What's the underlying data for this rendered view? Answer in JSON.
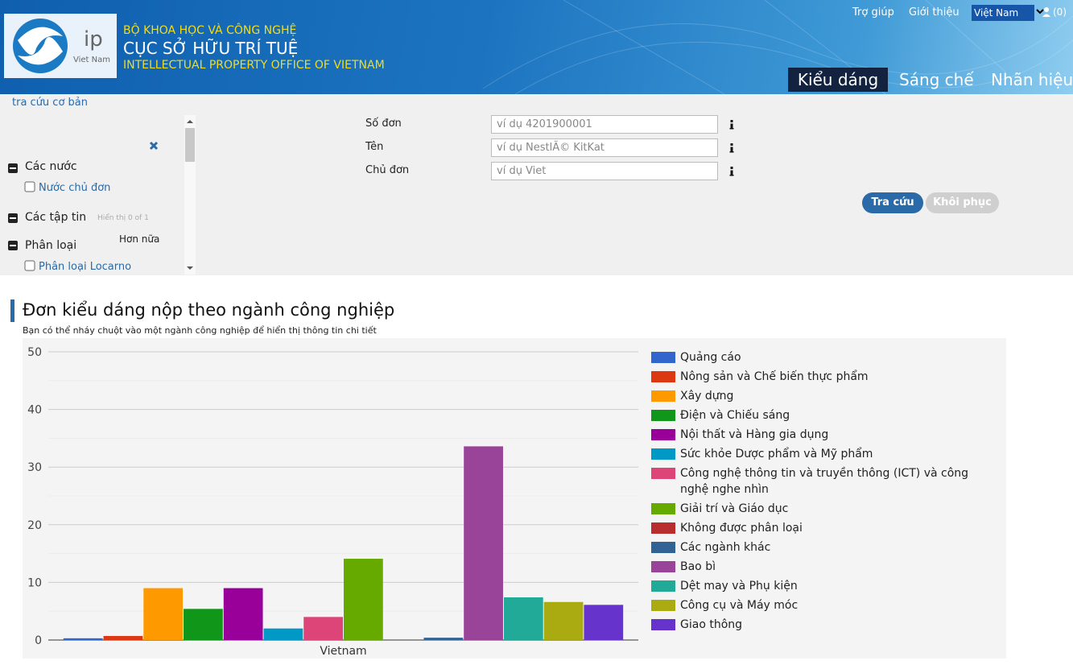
{
  "header": {
    "logo_text": "ip",
    "logo_country": "Viet Nam",
    "ministry": "BỘ KHOA HỌC VÀ CÔNG NGHỆ",
    "office": "CỤC SỞ HỮU TRÍ TUỆ",
    "office_en": "INTELLECTUAL PROPERTY OFFICE OF VIETNAM",
    "links": [
      "Trợ giúp",
      "Giới thiệu"
    ],
    "language": "Việt Nam",
    "cart": "(0)",
    "tabs": [
      "Kiểu dáng",
      "Sáng chế",
      "Nhãn hiệu"
    ]
  },
  "breadcrumb": "tra cứu cơ bản",
  "sidebar": {
    "sections": [
      {
        "title": "Các nước",
        "option": "Nước chủ đơn"
      },
      {
        "title": "Các tập tin",
        "note": "Hiển thị 0 of 1"
      },
      {
        "title": "Phân loại",
        "more": "Hơn nữa",
        "option": "Phân loại Locarno"
      }
    ]
  },
  "form": {
    "fields": [
      {
        "label": "Số đơn",
        "placeholder": "ví dụ 4201900001"
      },
      {
        "label": "Tên",
        "placeholder": "ví dụ NestlÃ© KitKat"
      },
      {
        "label": "Chủ đơn",
        "placeholder": "ví dụ Viet"
      }
    ],
    "buttons": [
      "Tra cứu",
      "Khôi phục"
    ]
  },
  "chart_data": {
    "type": "bar",
    "title": "Đơn kiểu dáng nộp theo ngành công nghiệp",
    "subtitle": "Bạn có thể nháy chuột vào một ngành công nghiệp để hiển thị thông tin chi tiết",
    "categories": [
      "Vietnam"
    ],
    "series": [
      {
        "name": "Quảng cáo",
        "color": "#3366cc",
        "values": [
          0.3
        ]
      },
      {
        "name": "Nông sản và Chế biến thực phẩm",
        "color": "#dc3912",
        "values": [
          0.7
        ]
      },
      {
        "name": "Xây dựng",
        "color": "#ff9900",
        "values": [
          9
        ]
      },
      {
        "name": "Điện và Chiếu sáng",
        "color": "#109618",
        "values": [
          5.4
        ]
      },
      {
        "name": "Nội thất và Hàng gia dụng",
        "color": "#990099",
        "values": [
          9
        ]
      },
      {
        "name": "Sức khỏe Dược phẩm và Mỹ phẩm",
        "color": "#0099c6",
        "values": [
          2
        ]
      },
      {
        "name": "Công nghệ thông tin và truyền thông (ICT) và công nghệ nghe nhìn",
        "color": "#dd4477",
        "values": [
          4
        ]
      },
      {
        "name": "Giải trí và Giáo dục",
        "color": "#66aa00",
        "values": [
          14.1
        ]
      },
      {
        "name": "Không được phân loại",
        "color": "#b82e2e",
        "values": [
          0
        ]
      },
      {
        "name": "Các ngành khác",
        "color": "#316395",
        "values": [
          0.4
        ]
      },
      {
        "name": "Bao bì",
        "color": "#994499",
        "values": [
          33.6
        ]
      },
      {
        "name": "Dệt may và Phụ kiện",
        "color": "#22aa99",
        "values": [
          7.4
        ]
      },
      {
        "name": "Công cụ và Máy móc",
        "color": "#aaaa11",
        "values": [
          6.6
        ]
      },
      {
        "name": "Giao thông",
        "color": "#6633cc",
        "values": [
          6.1
        ]
      }
    ],
    "ylim": [
      0,
      50
    ],
    "yticks": [
      0,
      10,
      20,
      30,
      40,
      50
    ],
    "minor_yticks": [
      5,
      15,
      25,
      35,
      45
    ],
    "grid": true,
    "legend": "right"
  }
}
